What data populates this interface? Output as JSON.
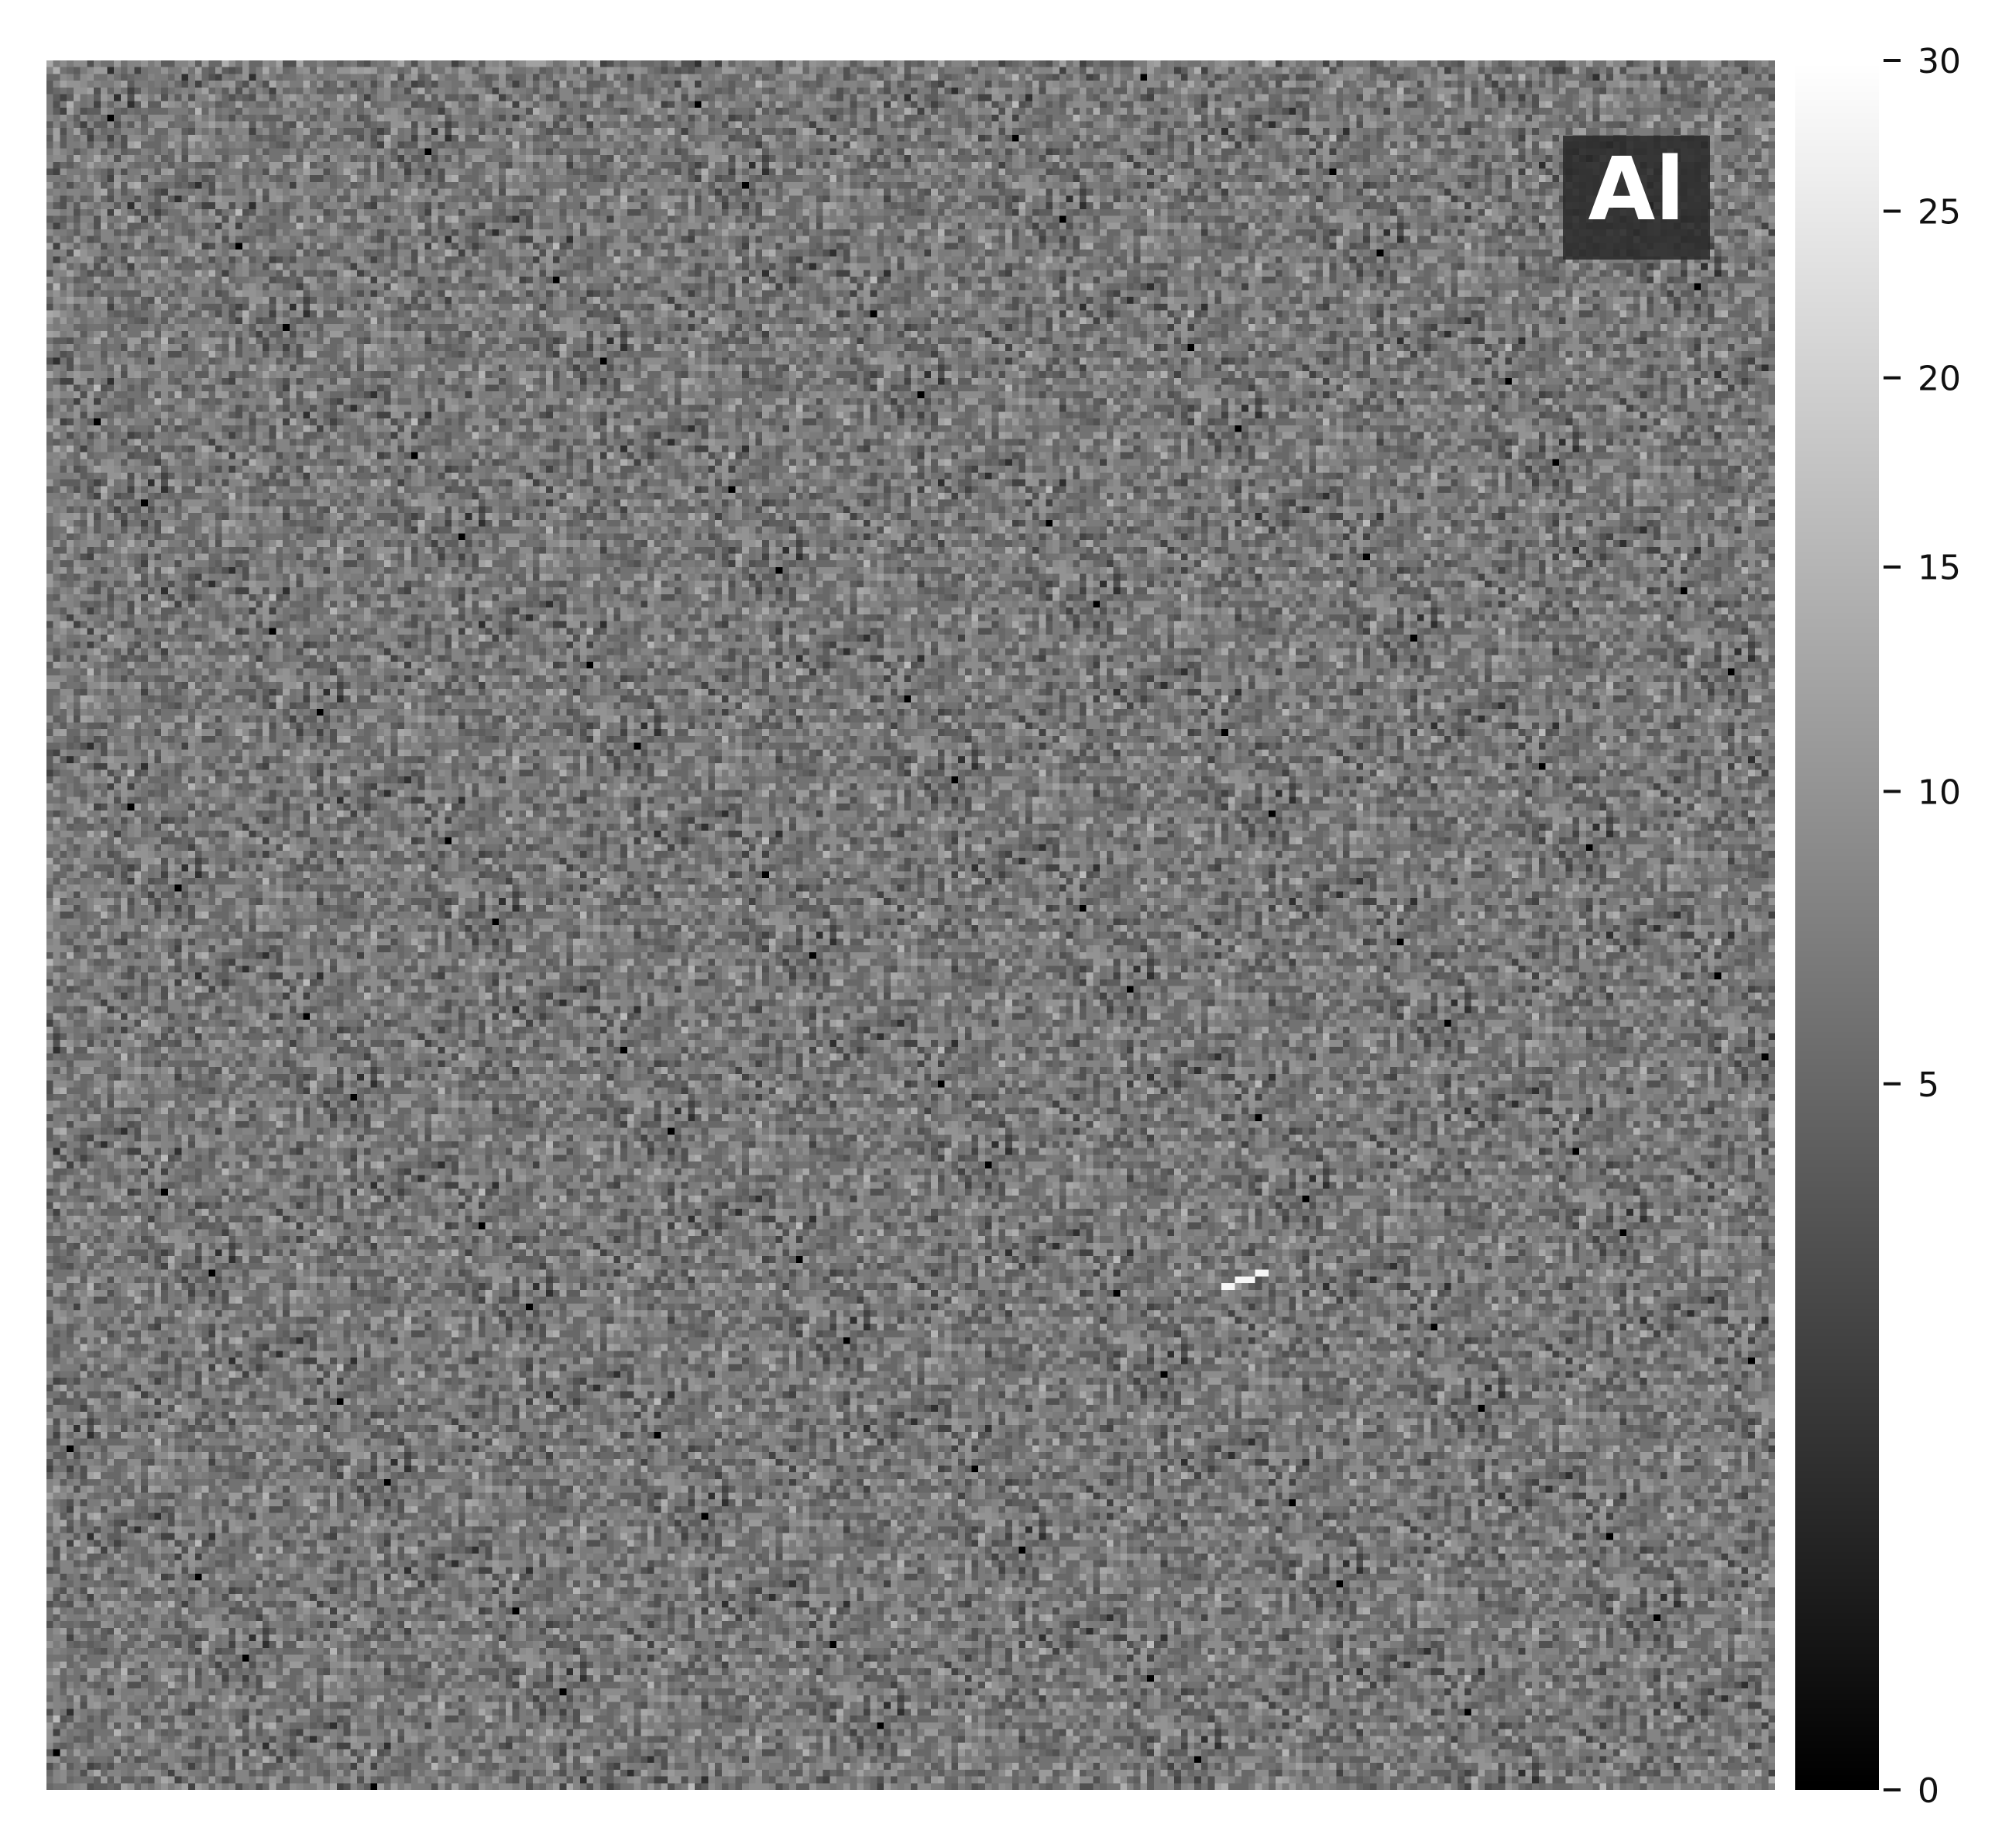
{
  "chart_data": {
    "type": "heatmap",
    "title": "",
    "colormap": "gray",
    "element_label": "Al",
    "colorbar": {
      "vmin": 0,
      "vmax": 30,
      "scale": "power-norm",
      "ticks": [
        0,
        5,
        10,
        15,
        20,
        25,
        30
      ],
      "tick_labels": [
        "0",
        "5",
        "10",
        "15",
        "20",
        "25",
        "30"
      ]
    },
    "grid": {
      "rows": 256,
      "cols": 256
    },
    "intensity_stats": {
      "mean": 7,
      "min": 0,
      "max": 30
    },
    "hotspots": [
      {
        "row": 180,
        "col": 177,
        "value": 28,
        "note": "bright streak"
      }
    ]
  }
}
